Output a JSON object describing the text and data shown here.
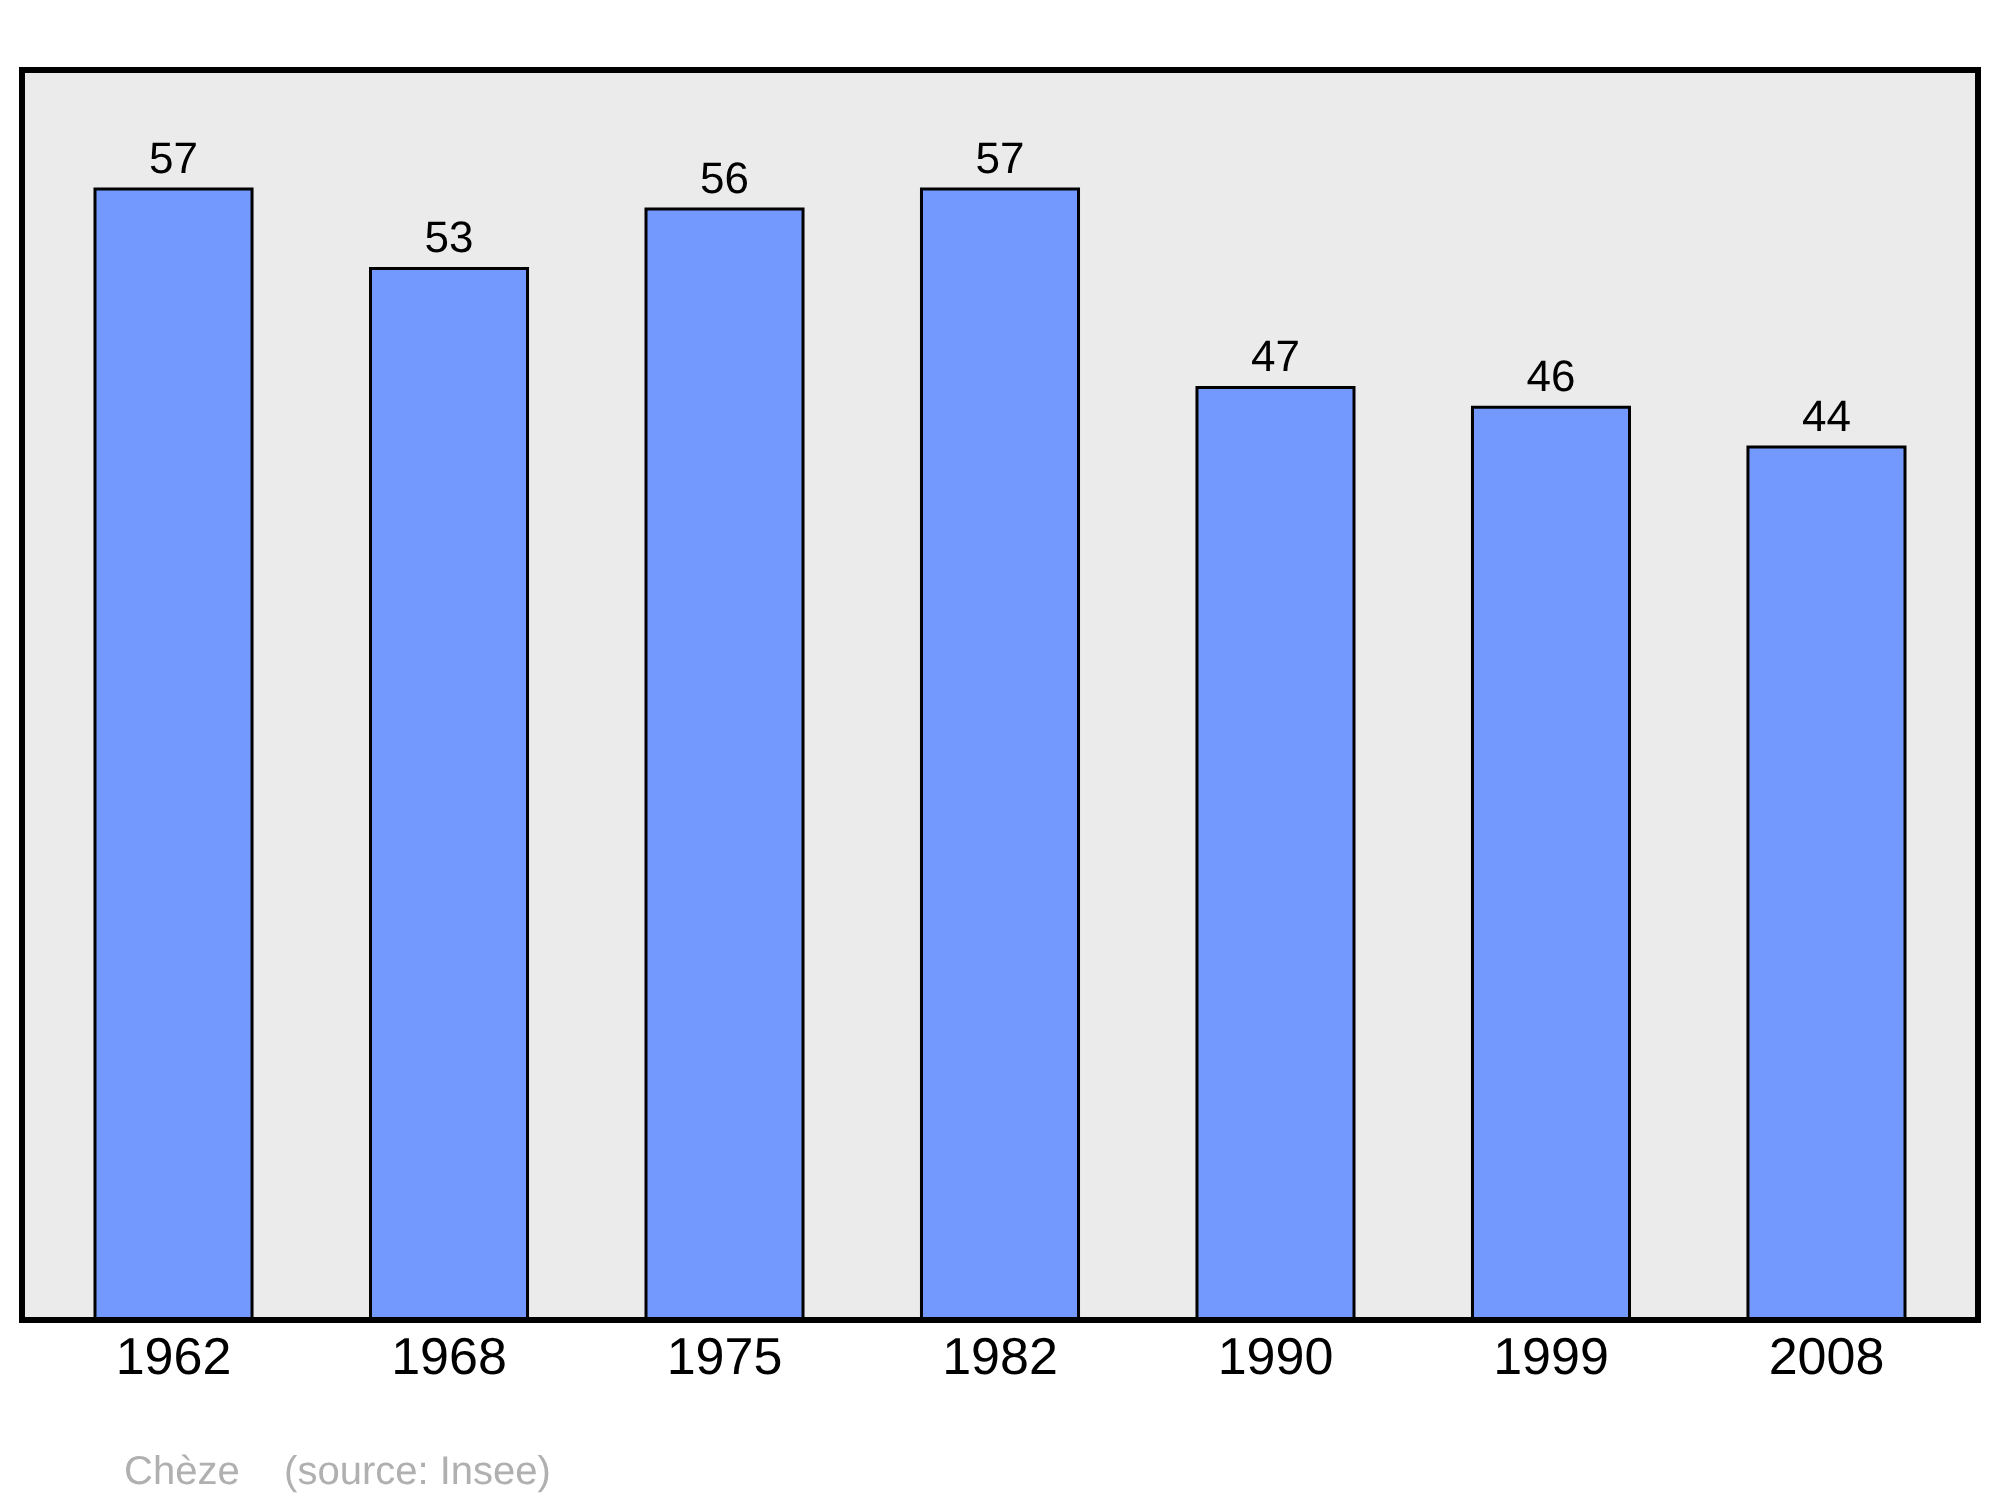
{
  "chart_data": {
    "type": "bar",
    "categories": [
      "1962",
      "1968",
      "1975",
      "1982",
      "1990",
      "1999",
      "2008"
    ],
    "values": [
      57,
      53,
      56,
      57,
      47,
      46,
      44
    ],
    "color": "#7399ff",
    "ylim": [
      0,
      63
    ],
    "data_labels": true,
    "grid": false,
    "legend": false,
    "tick_labels": "x",
    "annotations": [
      "Chèze    (source: Insee)"
    ]
  }
}
